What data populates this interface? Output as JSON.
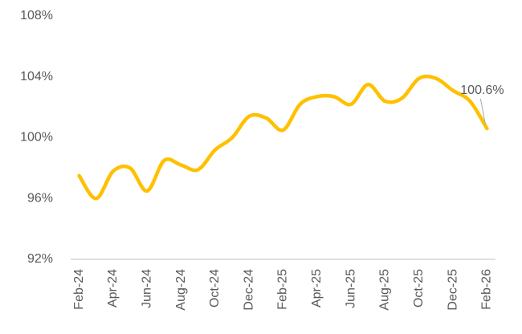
{
  "chart_data": {
    "type": "line",
    "categories": [
      "Feb-24",
      null,
      "Apr-24",
      null,
      "Jun-24",
      null,
      "Aug-24",
      null,
      "Oct-24",
      null,
      "Dec-24",
      null,
      "Feb-25",
      null,
      "Apr-25",
      null,
      "Jun-25",
      null,
      "Aug-25",
      null,
      "Oct-25",
      null,
      "Dec-25",
      null,
      "Feb-26"
    ],
    "values": [
      97.5,
      96.0,
      97.8,
      98.0,
      96.5,
      98.5,
      98.2,
      97.9,
      99.2,
      100.0,
      101.4,
      101.3,
      100.5,
      102.2,
      102.7,
      102.7,
      102.2,
      103.5,
      102.4,
      102.6,
      103.9,
      103.9,
      103.1,
      102.4,
      100.6
    ],
    "value_labels": [
      null,
      null,
      null,
      null,
      null,
      null,
      null,
      null,
      null,
      null,
      null,
      null,
      null,
      null,
      null,
      null,
      null,
      null,
      null,
      null,
      null,
      null,
      null,
      null,
      "100.6%"
    ],
    "color": "#FFC000",
    "ylim": [
      92,
      108
    ],
    "yticks": [
      {
        "value": 92,
        "label": "92%"
      },
      {
        "value": 96,
        "label": "96%"
      },
      {
        "value": 100,
        "label": "100%"
      },
      {
        "value": 104,
        "label": "104%"
      },
      {
        "value": 108,
        "label": "108%"
      }
    ],
    "grid": false
  }
}
